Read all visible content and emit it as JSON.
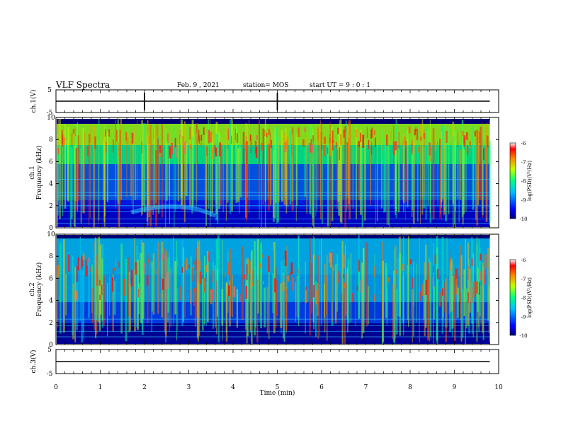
{
  "header": {
    "title": "VLF Spectra",
    "date": "Feb. 9 , 2021",
    "station": "station= MOS",
    "start": "start UT = 9 : 0 : 1"
  },
  "chart_data": [
    {
      "type": "line",
      "name": "ch1-waveform",
      "ylabel": "ch.1(V)",
      "ylim": [
        -5,
        5
      ],
      "yticks": [
        "5",
        "-5"
      ],
      "xlim": [
        0,
        10
      ],
      "x": [
        0,
        9.8
      ],
      "values": [
        0,
        0
      ],
      "spikes_x": [
        2.0,
        5.0
      ]
    },
    {
      "type": "heatmap",
      "name": "ch1-spectrogram",
      "ylabel_top": "ch.1",
      "ylabel": "Frequency (kHz)",
      "ylim": [
        0,
        10
      ],
      "yticks": [
        "0",
        "2",
        "4",
        "6",
        "8",
        "10"
      ],
      "xlim": [
        0,
        10
      ],
      "data_extent_x": [
        0,
        9.8
      ],
      "colorbar": {
        "label": "log(PSD)(V²/Hz)",
        "range": [
          -10,
          -6
        ],
        "ticks": [
          "-6",
          "-7",
          "-8",
          "-9",
          "-10"
        ]
      }
    },
    {
      "type": "heatmap",
      "name": "ch2-spectrogram",
      "ylabel_top": "ch.2",
      "ylabel": "Frequency (kHz)",
      "ylim": [
        0,
        10
      ],
      "yticks": [
        "0",
        "2",
        "4",
        "6",
        "8",
        "10"
      ],
      "xlim": [
        0,
        10
      ],
      "data_extent_x": [
        0,
        9.8
      ],
      "colorbar": {
        "label": "log(PSD)(V²/Hz)",
        "range": [
          -10,
          -6
        ],
        "ticks": [
          "-6",
          "-7",
          "-8",
          "-9",
          "-10"
        ]
      }
    },
    {
      "type": "line",
      "name": "ch3-waveform",
      "ylabel": "ch.3(V)",
      "ylim": [
        -5,
        5
      ],
      "yticks": [
        "5",
        "-5"
      ],
      "xlim": [
        0,
        10
      ],
      "x": [
        0,
        9.8
      ],
      "values": [
        0,
        0
      ],
      "xlabel": "Time (min)",
      "xticks": [
        "0",
        "1",
        "2",
        "3",
        "4",
        "5",
        "6",
        "7",
        "8",
        "9",
        "10"
      ]
    }
  ]
}
